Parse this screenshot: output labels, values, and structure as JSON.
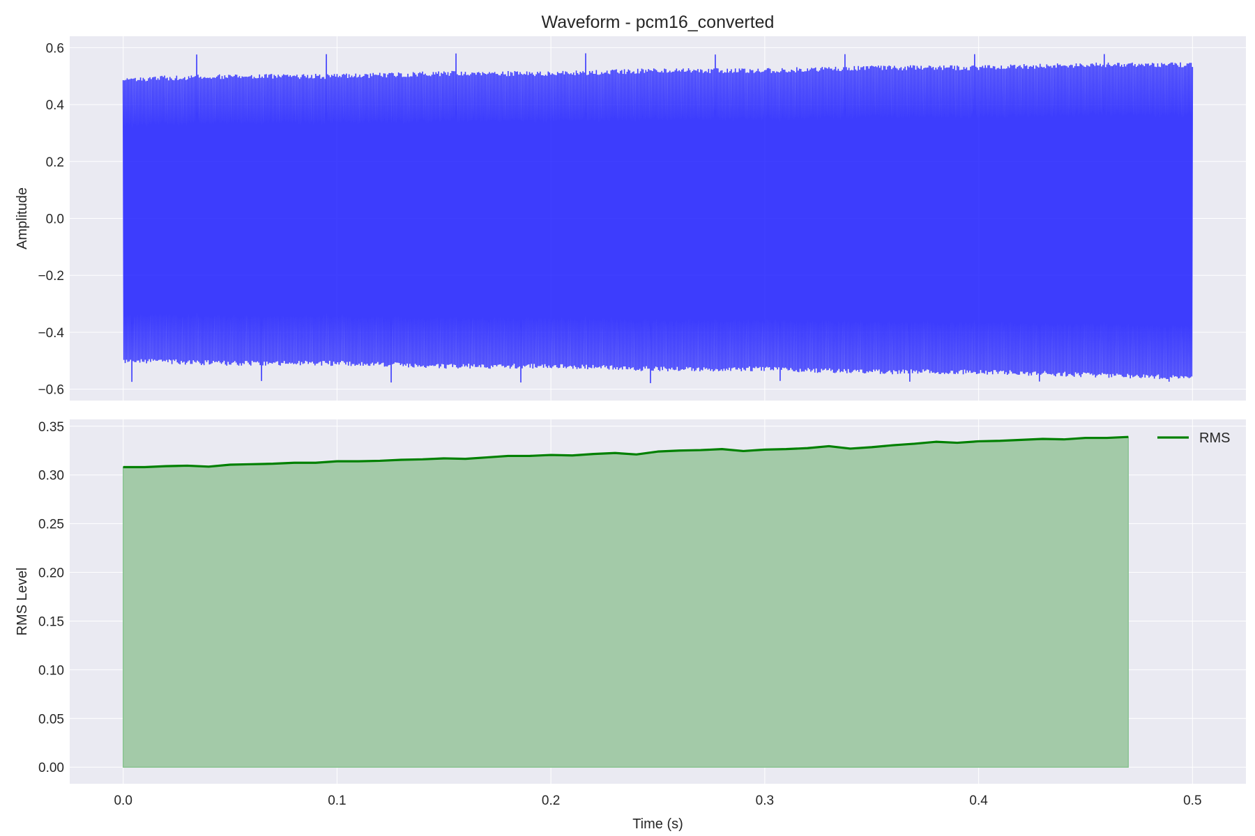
{
  "colors": {
    "background": "#ffffff",
    "plot_bg": "#eaeaf2",
    "grid": "#ffffff",
    "waveform": "#1f1fff",
    "rms_line": "#008000",
    "rms_fill": "#a3caa8"
  },
  "chart_data": [
    {
      "type": "line",
      "panel": "waveform",
      "title": "Waveform - pcm16_converted",
      "xlabel": "",
      "ylabel": "Amplitude",
      "xlim": [
        -0.025,
        0.525
      ],
      "ylim": [
        -0.64,
        0.64
      ],
      "xticks": [
        0.0,
        0.1,
        0.2,
        0.3,
        0.4,
        0.5
      ],
      "xtick_labels": [],
      "yticks": [
        -0.6,
        -0.4,
        -0.2,
        0.0,
        0.2,
        0.4,
        0.6
      ],
      "ytick_labels": [
        "−0.6",
        "−0.4",
        "−0.2",
        "0.0",
        "0.2",
        "0.4",
        "0.6"
      ],
      "grid": true,
      "series": [
        {
          "color": "#1f1fff",
          "x_range": [
            0.0,
            0.5
          ],
          "envelope_x": [
            0.0,
            0.05,
            0.1,
            0.15,
            0.2,
            0.25,
            0.3,
            0.35,
            0.4,
            0.45,
            0.5
          ],
          "envelope_upper": [
            0.48,
            0.49,
            0.49,
            0.5,
            0.5,
            0.51,
            0.51,
            0.52,
            0.52,
            0.53,
            0.53
          ],
          "envelope_lower": [
            -0.49,
            -0.5,
            -0.5,
            -0.51,
            -0.51,
            -0.52,
            -0.52,
            -0.53,
            -0.53,
            -0.54,
            -0.55
          ],
          "peak_max": 0.58,
          "peak_min": -0.58
        }
      ]
    },
    {
      "type": "area",
      "panel": "rms",
      "title": "",
      "xlabel": "Time (s)",
      "ylabel": "RMS Level",
      "xlim": [
        -0.025,
        0.525
      ],
      "ylim": [
        -0.017,
        0.357
      ],
      "xticks": [
        0.0,
        0.1,
        0.2,
        0.3,
        0.4,
        0.5
      ],
      "xtick_labels": [
        "0.0",
        "0.1",
        "0.2",
        "0.3",
        "0.4",
        "0.5"
      ],
      "yticks": [
        0.0,
        0.05,
        0.1,
        0.15,
        0.2,
        0.25,
        0.3,
        0.35
      ],
      "ytick_labels": [
        "0.00",
        "0.05",
        "0.10",
        "0.15",
        "0.20",
        "0.25",
        "0.30",
        "0.35"
      ],
      "grid": true,
      "legend_position": "top-right",
      "series": [
        {
          "name": "RMS",
          "color": "#008000",
          "x": [
            0.0,
            0.01,
            0.02,
            0.03,
            0.04,
            0.05,
            0.06,
            0.07,
            0.08,
            0.09,
            0.1,
            0.11,
            0.12,
            0.13,
            0.14,
            0.15,
            0.16,
            0.17,
            0.18,
            0.19,
            0.2,
            0.21,
            0.22,
            0.23,
            0.24,
            0.25,
            0.26,
            0.27,
            0.28,
            0.29,
            0.3,
            0.31,
            0.32,
            0.33,
            0.34,
            0.35,
            0.36,
            0.37,
            0.38,
            0.39,
            0.4,
            0.41,
            0.42,
            0.43,
            0.44,
            0.45,
            0.46,
            0.47
          ],
          "values": [
            0.308,
            0.308,
            0.309,
            0.3095,
            0.3085,
            0.3105,
            0.311,
            0.3115,
            0.3125,
            0.3125,
            0.314,
            0.314,
            0.3145,
            0.3155,
            0.316,
            0.317,
            0.3165,
            0.318,
            0.3195,
            0.3195,
            0.3205,
            0.32,
            0.3215,
            0.3225,
            0.321,
            0.324,
            0.325,
            0.3255,
            0.3265,
            0.3245,
            0.326,
            0.3265,
            0.3275,
            0.3295,
            0.327,
            0.3285,
            0.3305,
            0.332,
            0.334,
            0.333,
            0.3345,
            0.335,
            0.336,
            0.337,
            0.3365,
            0.338,
            0.338,
            0.339
          ]
        }
      ]
    }
  ]
}
